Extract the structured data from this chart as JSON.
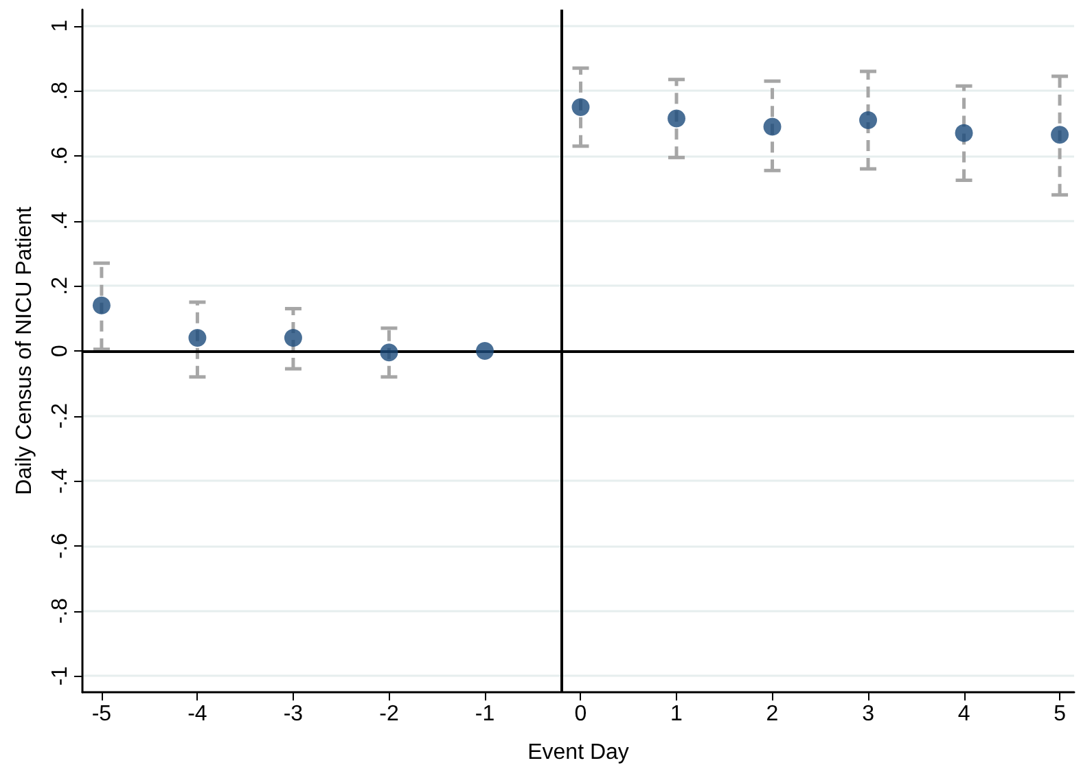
{
  "chart_data": {
    "type": "scatter",
    "xlabel": "Event Day",
    "ylabel": "Daily Census of NICU Patient",
    "x": [
      -5,
      -4,
      -3,
      -2,
      -1,
      0,
      1,
      2,
      3,
      4,
      5
    ],
    "series": [
      {
        "color": "#1a4a7a",
        "values": [
          0.14,
          0.04,
          0.04,
          -0.005,
          0,
          0.75,
          0.715,
          0.69,
          0.71,
          0.67,
          0.665
        ],
        "errors": [
          [
            0.005,
            0.27
          ],
          [
            -0.08,
            0.15
          ],
          [
            -0.055,
            0.13
          ],
          [
            -0.08,
            0.07
          ],
          null,
          [
            0.63,
            0.87
          ],
          [
            0.595,
            0.835
          ],
          [
            0.555,
            0.83
          ],
          [
            0.56,
            0.86
          ],
          [
            0.525,
            0.815
          ],
          [
            0.48,
            0.845
          ]
        ]
      }
    ],
    "xlim": [
      -5.2,
      5.15
    ],
    "xticks": [
      -5,
      -4,
      -3,
      -2,
      -1,
      0,
      1,
      2,
      3,
      4,
      5
    ],
    "ylim": [
      -1.05,
      1.05
    ],
    "yticks": [
      {
        "value": -1,
        "label": "-1"
      },
      {
        "value": -0.8,
        "label": "-.8"
      },
      {
        "value": -0.6,
        "label": "-.6"
      },
      {
        "value": -0.4,
        "label": "-.4"
      },
      {
        "value": -0.2,
        "label": "-.2"
      },
      {
        "value": 0,
        "label": "0"
      },
      {
        "value": 0.2,
        "label": ".2"
      },
      {
        "value": 0.4,
        "label": ".4"
      },
      {
        "value": 0.6,
        "label": ".6"
      },
      {
        "value": 0.8,
        "label": ".8"
      },
      {
        "value": 1,
        "label": "1"
      }
    ],
    "ref_lines": [
      {
        "axis": "y",
        "value": 0,
        "color": "#000000"
      },
      {
        "axis": "x",
        "value": -0.2,
        "color": "#000000"
      }
    ],
    "grid": "y",
    "marker": "circle"
  }
}
